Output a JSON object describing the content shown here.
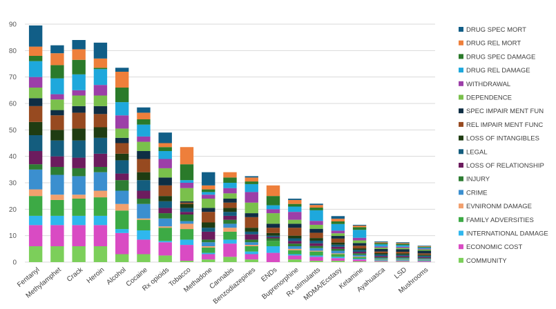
{
  "chart_data": {
    "type": "bar",
    "stacked": true,
    "title": "",
    "xlabel": "",
    "ylabel": "",
    "ylim": [
      0,
      90
    ],
    "yticks": [
      0,
      10,
      20,
      30,
      40,
      50,
      60,
      70,
      80,
      90
    ],
    "grid": true,
    "legend_position": "right",
    "categories": [
      "Fentanyl",
      "Methylamphet",
      "Crack",
      "Heroin",
      "Alcohol",
      "Cocaine",
      "Rx opioids",
      "Tobacco",
      "Methadone",
      "Cannabis",
      "Benzodiazepines",
      "ENDs",
      "Buprenorphine",
      "Rx stimulants",
      "MDMA/Ecstasy",
      "Ketamine",
      "Ayahuasca",
      "LSD",
      "Mushrooms"
    ],
    "series": [
      {
        "name": "COMMUNITY",
        "color": "#7ccf5a",
        "values": [
          6,
          6,
          6,
          6,
          3,
          3,
          2.5,
          0.5,
          1,
          2,
          1,
          0,
          1,
          0.5,
          0.5,
          0.3,
          0.2,
          0.2,
          0.1
        ]
      },
      {
        "name": "ECONOMIC COST",
        "color": "#d94bc3",
        "values": [
          8,
          8,
          8,
          8,
          8,
          5.5,
          5,
          6,
          2,
          5,
          2,
          3.5,
          1.5,
          1.5,
          1,
          0.7,
          0.3,
          0.3,
          0.3
        ]
      },
      {
        "name": "INTERNATIONAL DAMAGE",
        "color": "#2fb7ee",
        "values": [
          3.5,
          3.5,
          3.5,
          3.5,
          1.5,
          3.5,
          0.5,
          2,
          0.5,
          1.5,
          1,
          2.5,
          0.5,
          0.5,
          0.5,
          0.3,
          0.2,
          0.2,
          0.2
        ]
      },
      {
        "name": "FAMILY ADVERSITIES",
        "color": "#3daa45",
        "values": [
          7.5,
          6,
          6.5,
          7,
          7,
          4,
          5,
          4,
          2,
          3,
          2,
          2,
          1.5,
          1.5,
          1,
          0.6,
          0.3,
          0.3,
          0.2
        ]
      },
      {
        "name": "EVNIRONM DAMAGE",
        "color": "#f2a06e",
        "values": [
          2.5,
          2,
          1.5,
          2.5,
          2.5,
          0.5,
          0.5,
          2,
          0.5,
          1.5,
          0.5,
          0,
          0.5,
          0.3,
          0.3,
          0.2,
          0.1,
          0.1,
          0.1
        ]
      },
      {
        "name": "CRIME",
        "color": "#3b8fcf",
        "values": [
          7.5,
          7.5,
          7,
          7,
          5,
          5.5,
          3,
          1,
          1.5,
          1.5,
          1,
          0,
          1,
          1,
          1,
          0.6,
          0.3,
          0.3,
          0.3
        ]
      },
      {
        "name": "INJURY",
        "color": "#2e7d33",
        "values": [
          2,
          3,
          3,
          2,
          4,
          2,
          2,
          2.5,
          1,
          1.5,
          1,
          1,
          1,
          0.8,
          0.7,
          0.6,
          0.4,
          0.4,
          0.3
        ]
      },
      {
        "name": "LOSS OF RELATIONSHIP",
        "color": "#6c1c5e",
        "values": [
          5,
          4,
          4,
          5,
          2.5,
          3,
          2,
          1,
          3,
          1.5,
          2,
          0.5,
          1,
          1,
          0.8,
          0.6,
          0.5,
          0.5,
          0.4
        ]
      },
      {
        "name": "LEGAL",
        "color": "#145d7e",
        "values": [
          6,
          6,
          6.5,
          6,
          5,
          4,
          2.5,
          1.5,
          1.5,
          1.5,
          1,
          0.5,
          1,
          1,
          0.8,
          0.7,
          0.6,
          0.5,
          0.5
        ]
      },
      {
        "name": "LOSS OF INTANGIBLES",
        "color": "#1f3c12",
        "values": [
          5,
          4,
          4.5,
          4,
          2.5,
          3,
          2,
          1.5,
          2,
          1.5,
          1.5,
          1,
          1,
          1,
          0.8,
          0.6,
          0.5,
          0.5,
          0.4
        ]
      },
      {
        "name": "REL IMPAIR MENT FUNC",
        "color": "#974a20",
        "values": [
          6,
          5.5,
          6,
          5,
          4,
          5,
          4,
          0.5,
          4,
          2,
          4,
          2,
          3,
          2,
          1.5,
          1,
          0.6,
          0.6,
          0.5
        ]
      },
      {
        "name": "SPEC IMPAIR MENT FUN",
        "color": "#0f2e44",
        "values": [
          3,
          2,
          2.5,
          3,
          2,
          3,
          3,
          0.5,
          1.5,
          1.5,
          1.5,
          1.5,
          1.5,
          1.5,
          1,
          1,
          1,
          1,
          1
        ]
      },
      {
        "name": "DEPENDENCE",
        "color": "#7ac04c",
        "values": [
          4,
          4,
          4,
          4,
          3.5,
          3.5,
          3.5,
          5,
          3.5,
          2,
          4,
          4,
          1.5,
          1.5,
          1,
          1,
          0.5,
          0.5,
          0.5
        ]
      },
      {
        "name": "WITHDRAWAL",
        "color": "#9c3fa8",
        "values": [
          4,
          2,
          2,
          4,
          5,
          2,
          3.5,
          2,
          1.5,
          2,
          4,
          1.5,
          3,
          1.5,
          1,
          1,
          0.4,
          0.4,
          0.3
        ]
      },
      {
        "name": "DRUG REL DAMAGE",
        "color": "#1ea8dc",
        "values": [
          6,
          6,
          6,
          6,
          5,
          4.5,
          3,
          1,
          1,
          2,
          3,
          1.5,
          2,
          4,
          2.5,
          3,
          0.8,
          0.6,
          0.4
        ]
      },
      {
        "name": "DRUG SPEC DAMAGE",
        "color": "#2a7a2a",
        "values": [
          2,
          5,
          5.5,
          0.5,
          5.5,
          2,
          1.5,
          6,
          1,
          2,
          1,
          3.5,
          1,
          1,
          1,
          1,
          0.5,
          0.5,
          0.3
        ]
      },
      {
        "name": "DRUG REL MORT",
        "color": "#ee7f3b",
        "values": [
          3.5,
          4.5,
          4,
          3.5,
          6,
          2.5,
          1.5,
          6.5,
          1.5,
          2,
          1.5,
          4,
          1.5,
          1,
          1,
          0.6,
          0.3,
          0.3,
          0.2
        ]
      },
      {
        "name": "DRUG SPEC MORT",
        "color": "#115e87",
        "values": [
          8,
          3,
          3.5,
          6,
          1.5,
          2,
          4,
          0,
          5,
          0,
          0.5,
          0,
          0.5,
          0.5,
          1,
          0.3,
          0.3,
          0.3,
          0.2
        ]
      }
    ]
  }
}
